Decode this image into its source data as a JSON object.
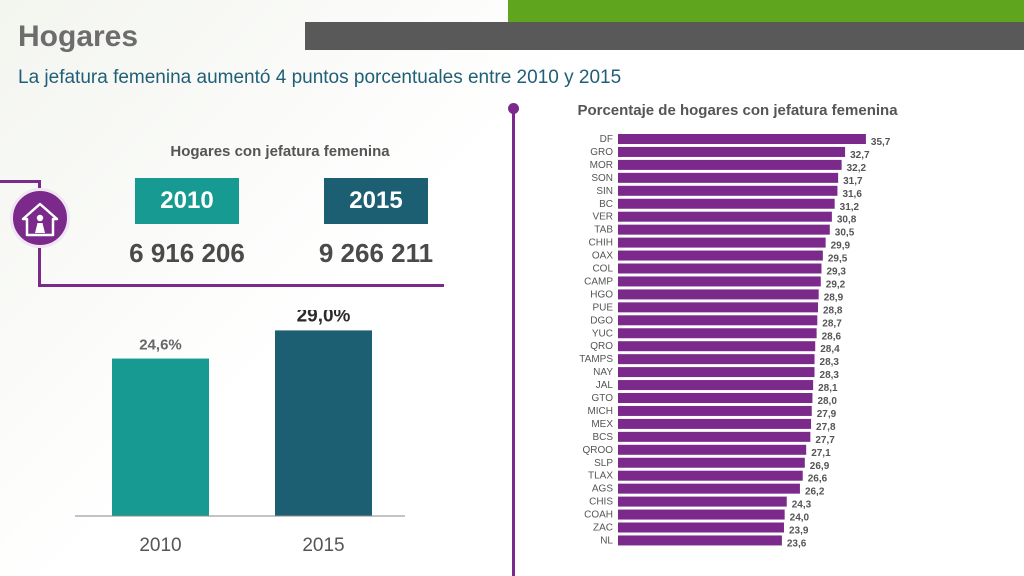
{
  "header": {
    "title": "Hogares",
    "subtitle": "La jefatura femenina aumentó 4 puntos porcentuales entre 2010 y 2015"
  },
  "summary": {
    "title": "Hogares con jefatura femenina",
    "icon": "house-woman-icon",
    "years": [
      {
        "year": "2010",
        "count": "6 916 206"
      },
      {
        "year": "2015",
        "count": "9 266 211"
      }
    ]
  },
  "colors": {
    "accent_purple": "#7b2a8c",
    "bar_2010": "#179a91",
    "bar_2015": "#1d5f72",
    "state_bar": "#7b2a8c",
    "top_green": "#5fa51e",
    "top_gray": "#595959"
  },
  "chart_data": [
    {
      "type": "bar",
      "categories": [
        "2010",
        "2015"
      ],
      "values": [
        24.6,
        29.0
      ],
      "data_labels": [
        "24,6%",
        "29,0%"
      ],
      "title": "",
      "xlabel": "",
      "ylabel": "",
      "ylim": [
        0,
        30
      ],
      "grid": false
    },
    {
      "type": "bar",
      "orientation": "horizontal",
      "title": "Porcentaje de hogares con jefatura femenina",
      "categories": [
        "DF",
        "GRO",
        "MOR",
        "SON",
        "SIN",
        "BC",
        "VER",
        "TAB",
        "CHIH",
        "OAX",
        "COL",
        "CAMP",
        "HGO",
        "PUE",
        "DGO",
        "YUC",
        "QRO",
        "TAMPS",
        "NAY",
        "JAL",
        "GTO",
        "MICH",
        "MEX",
        "BCS",
        "QROO",
        "SLP",
        "TLAX",
        "AGS",
        "CHIS",
        "COAH",
        "ZAC",
        "NL"
      ],
      "values": [
        35.7,
        32.7,
        32.2,
        31.7,
        31.6,
        31.2,
        30.8,
        30.5,
        29.9,
        29.5,
        29.3,
        29.2,
        28.9,
        28.8,
        28.7,
        28.6,
        28.4,
        28.3,
        28.3,
        28.1,
        28.0,
        27.9,
        27.8,
        27.7,
        27.1,
        26.9,
        26.6,
        26.2,
        24.3,
        24.0,
        23.9,
        23.6
      ],
      "data_labels": [
        "35,7",
        "32,7",
        "32,2",
        "31,7",
        "31,6",
        "31,2",
        "30,8",
        "30,5",
        "29,9",
        "29,5",
        "29,3",
        "29,2",
        "28,9",
        "28,8",
        "28,7",
        "28,6",
        "28,4",
        "28,3",
        "28,3",
        "28,1",
        "28,0",
        "27,9",
        "27,8",
        "27,7",
        "27,1",
        "26,9",
        "26,6",
        "26,2",
        "24,3",
        "24,0",
        "23,9",
        "23,6"
      ],
      "xlim": [
        0,
        36
      ],
      "grid": false
    }
  ]
}
